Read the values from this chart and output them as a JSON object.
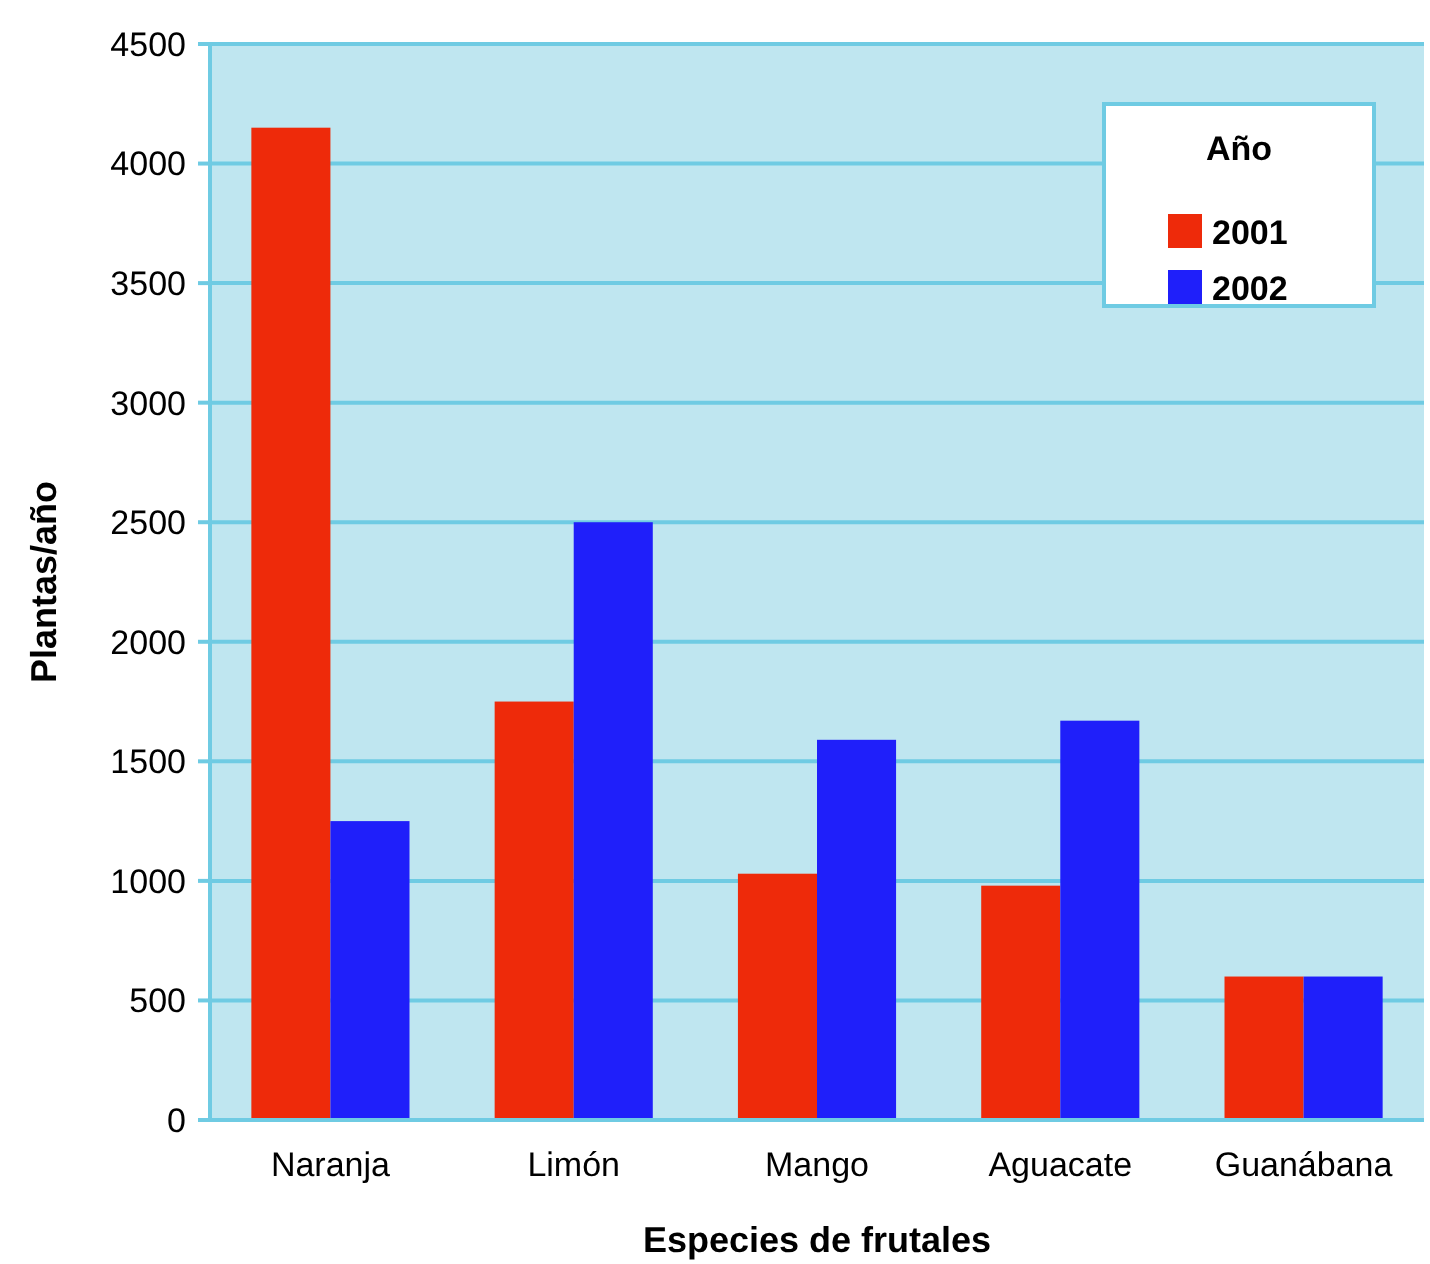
{
  "chart_data": {
    "type": "bar",
    "xlabel": "Especies de frutales",
    "ylabel": "Plantas/año",
    "legend_title": "Año",
    "categories": [
      "Naranja",
      "Limón",
      "Mango",
      "Aguacate",
      "Guanábana"
    ],
    "series": [
      {
        "name": "2001",
        "color": "#ee2a0a",
        "values": [
          4150,
          1750,
          1030,
          980,
          600
        ]
      },
      {
        "name": "2002",
        "color": "#1f1ffa",
        "values": [
          1250,
          2500,
          1590,
          1670,
          600
        ]
      }
    ],
    "ylim": [
      0,
      4500
    ],
    "yticks": [
      0,
      500,
      1000,
      1500,
      2000,
      2500,
      3000,
      3500,
      4000,
      4500
    ],
    "grid": "y",
    "legend": "top right"
  }
}
